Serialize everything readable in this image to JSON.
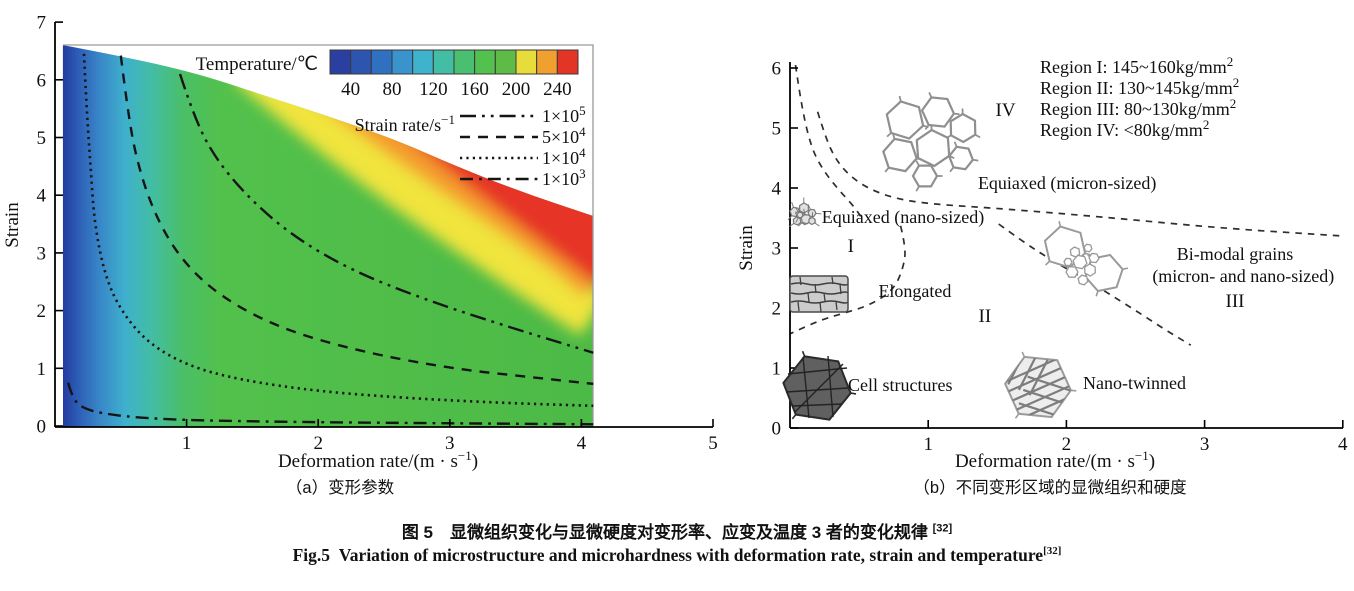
{
  "figure": {
    "caption_zh": "图 5　显微组织变化与显微硬度对变形率、应变及温度 3 者的变化规律 ",
    "caption_zh_ref": "[32]",
    "caption_en_label": "Fig.5",
    "caption_en": "Variation of microstructure and microhardness with deformation rate, strain and temperature",
    "caption_en_ref": "[32]"
  },
  "chart_data": [
    {
      "id": "a",
      "type": "heatmap",
      "subcaption": "（a）变形参数",
      "xlabel_pre": "Deformation rate/(m · s",
      "xlabel_sup": "−1",
      "xlabel_post": ")",
      "ylabel": "Strain",
      "xlim": [
        0,
        5
      ],
      "ylim": [
        0,
        7
      ],
      "xticks": [
        1,
        2,
        3,
        4,
        5
      ],
      "yticks": [
        0,
        1,
        2,
        3,
        4,
        5,
        6,
        7
      ],
      "colorbar": {
        "title": "Temperature/℃",
        "ticks": [
          40,
          80,
          120,
          160,
          200,
          240
        ],
        "range": [
          20,
          260
        ],
        "colors": [
          "#2a3f9f",
          "#2d55b0",
          "#3070c0",
          "#3a93cc",
          "#3fb3cb",
          "#43bda4",
          "#4abf6f",
          "#53c14e",
          "#5fbb48",
          "#e8dc3a",
          "#efa02f",
          "#e23525"
        ]
      },
      "field_colors": {
        "low_rate": "#22399b",
        "mid_rate": "#52c14c",
        "hot_band_yellow": "#f0e43c",
        "hot_band_orange": "#f49b2e",
        "hot_region_red": "#e63528"
      },
      "domain_boundary": [
        [
          0.06,
          6.6
        ],
        [
          0.57,
          6.38
        ],
        [
          1.1,
          6.1
        ],
        [
          1.6,
          5.72
        ],
        [
          2.1,
          5.35
        ],
        [
          2.6,
          4.95
        ],
        [
          3.05,
          4.5
        ],
        [
          3.55,
          4.05
        ],
        [
          4.09,
          3.64
        ]
      ],
      "legend_title_pre": "Strain rate/s",
      "legend_title_sup": "−1",
      "contours": [
        {
          "label": "1×10⁵",
          "base": "1×10",
          "exp": "5",
          "strain_rate_s1": 100000,
          "style": "dash-dot-dot",
          "points": [
            [
              0.95,
              6.1
            ],
            [
              1.05,
              5.4
            ],
            [
              1.2,
              4.7
            ],
            [
              1.45,
              4.0
            ],
            [
              1.8,
              3.3
            ],
            [
              2.25,
              2.7
            ],
            [
              2.8,
              2.2
            ],
            [
              3.4,
              1.75
            ],
            [
              4.09,
              1.27
            ]
          ]
        },
        {
          "label": "5×10⁴",
          "base": "5×10",
          "exp": "4",
          "strain_rate_s1": 50000,
          "style": "dashed",
          "points": [
            [
              0.5,
              6.42
            ],
            [
              0.55,
              5.5
            ],
            [
              0.62,
              4.6
            ],
            [
              0.75,
              3.7
            ],
            [
              0.95,
              2.9
            ],
            [
              1.25,
              2.25
            ],
            [
              1.7,
              1.7
            ],
            [
              2.3,
              1.3
            ],
            [
              3.0,
              1.0
            ],
            [
              3.6,
              0.85
            ],
            [
              4.09,
              0.73
            ]
          ]
        },
        {
          "label": "1×10⁴",
          "base": "1×10",
          "exp": "4",
          "strain_rate_s1": 10000,
          "style": "dotted",
          "points": [
            [
              0.22,
              6.45
            ],
            [
              0.24,
              5.5
            ],
            [
              0.27,
              4.5
            ],
            [
              0.3,
              3.5
            ],
            [
              0.38,
              2.6
            ],
            [
              0.5,
              2.0
            ],
            [
              0.7,
              1.45
            ],
            [
              1.0,
              1.05
            ],
            [
              1.4,
              0.8
            ],
            [
              2.0,
              0.6
            ],
            [
              2.7,
              0.48
            ],
            [
              3.4,
              0.4
            ],
            [
              4.09,
              0.35
            ]
          ]
        },
        {
          "label": "1×10³",
          "base": "1×10",
          "exp": "3",
          "strain_rate_s1": 1000,
          "style": "dash-dot",
          "points": [
            [
              0.1,
              0.75
            ],
            [
              0.13,
              0.5
            ],
            [
              0.2,
              0.32
            ],
            [
              0.35,
              0.22
            ],
            [
              0.6,
              0.15
            ],
            [
              1.0,
              0.1
            ],
            [
              1.8,
              0.07
            ],
            [
              2.8,
              0.05
            ],
            [
              4.09,
              0.03
            ]
          ]
        }
      ]
    },
    {
      "id": "b",
      "type": "region-diagram",
      "subcaption": "（b）不同变形区域的显微组织和硬度",
      "xlabel_pre": "Deformation rate/(m · s",
      "xlabel_sup": "−1",
      "xlabel_post": ")",
      "ylabel": "Strain",
      "xlim": [
        0,
        4
      ],
      "ylim": [
        0,
        6
      ],
      "xticks": [
        1,
        2,
        3,
        4
      ],
      "yticks": [
        0,
        1,
        2,
        3,
        4,
        5,
        6
      ],
      "hardness": [
        {
          "region": "I",
          "base": "Region I: 145~160kg/mm",
          "sup": "2",
          "range_kg_mm2": "145~160"
        },
        {
          "region": "II",
          "base": "Region II: 130~145kg/mm",
          "sup": "2",
          "range_kg_mm2": "130~145"
        },
        {
          "region": "III",
          "base": "Region III: 80~130kg/mm",
          "sup": "2",
          "range_kg_mm2": "80~130"
        },
        {
          "region": "IV",
          "base": "Region IV: <80kg/mm",
          "sup": "2",
          "range_kg_mm2": "<80"
        }
      ],
      "markers": {
        "r1": {
          "text": "I",
          "x": 0.44,
          "y": 3.03
        },
        "r2": {
          "text": "II",
          "x": 1.41,
          "y": 1.87
        },
        "r3": {
          "text": "III",
          "x": 3.22,
          "y": 2.12
        },
        "r4": {
          "text": "IV",
          "x": 1.56,
          "y": 5.3
        }
      },
      "labels": {
        "equiaxed_micron": {
          "text": "Equiaxed (micron-sized)",
          "x": 1.36,
          "y": 4.08
        },
        "equiaxed_nano": {
          "text": "Equiaxed (nano-sized)",
          "x": 0.23,
          "y": 3.52
        },
        "elongated": {
          "text": "Elongated",
          "x": 0.64,
          "y": 2.28
        },
        "cell_structures": {
          "text": "Cell structures",
          "x": 0.42,
          "y": 0.72
        },
        "nano_twinned": {
          "text": "Nano-twinned",
          "x": 2.12,
          "y": 0.75
        },
        "bimodal_line1": {
          "text": "Bi-modal grains",
          "x": 3.22,
          "y": 2.9
        },
        "bimodal_line2": {
          "text": "(micron- and nano-sized)",
          "x": 3.28,
          "y": 2.53
        }
      },
      "boundaries": [
        {
          "name": "left-upper-curve",
          "points": [
            [
              0.04,
              6.05
            ],
            [
              0.08,
              5.4
            ],
            [
              0.15,
              4.7
            ],
            [
              0.23,
              4.33
            ],
            [
              0.34,
              4.0
            ],
            [
              0.46,
              3.7
            ],
            [
              0.52,
              3.5
            ]
          ]
        },
        {
          "name": "region-IV-boundary",
          "points": [
            [
              0.2,
              5.27
            ],
            [
              0.24,
              4.97
            ],
            [
              0.31,
              4.55
            ],
            [
              0.42,
              4.22
            ],
            [
              0.58,
              3.97
            ],
            [
              0.8,
              3.8
            ],
            [
              1.09,
              3.72
            ],
            [
              1.45,
              3.67
            ],
            [
              2.25,
              3.52
            ],
            [
              3.12,
              3.33
            ],
            [
              4.0,
              3.2
            ]
          ]
        },
        {
          "name": "region-I-pocket-boundary",
          "points": [
            [
              0.8,
              3.37
            ],
            [
              0.84,
              3.0
            ],
            [
              0.82,
              2.67
            ],
            [
              0.75,
              2.3
            ],
            [
              0.58,
              2.05
            ],
            [
              0.4,
              1.92
            ],
            [
              0.22,
              1.8
            ],
            [
              0.0,
              1.57
            ]
          ]
        },
        {
          "name": "region-II-III-boundary",
          "points": [
            [
              1.51,
              3.4
            ],
            [
              1.67,
              3.13
            ],
            [
              1.87,
              2.83
            ],
            [
              2.12,
              2.5
            ],
            [
              2.3,
              2.25
            ],
            [
              2.54,
              1.9
            ],
            [
              2.72,
              1.63
            ],
            [
              2.9,
              1.38
            ]
          ]
        }
      ],
      "microstructures": [
        {
          "name": "equiaxed-nano",
          "x": 0.1,
          "y": 3.53
        },
        {
          "name": "equiaxed-micron",
          "x": 1.03,
          "y": 4.76
        },
        {
          "name": "elongated",
          "x": 0.21,
          "y": 2.25
        },
        {
          "name": "cell-structures",
          "x": 0.2,
          "y": 0.67
        },
        {
          "name": "nano-twinned",
          "x": 1.79,
          "y": 0.68
        },
        {
          "name": "bi-modal",
          "x": 2.14,
          "y": 2.78
        }
      ]
    }
  ]
}
